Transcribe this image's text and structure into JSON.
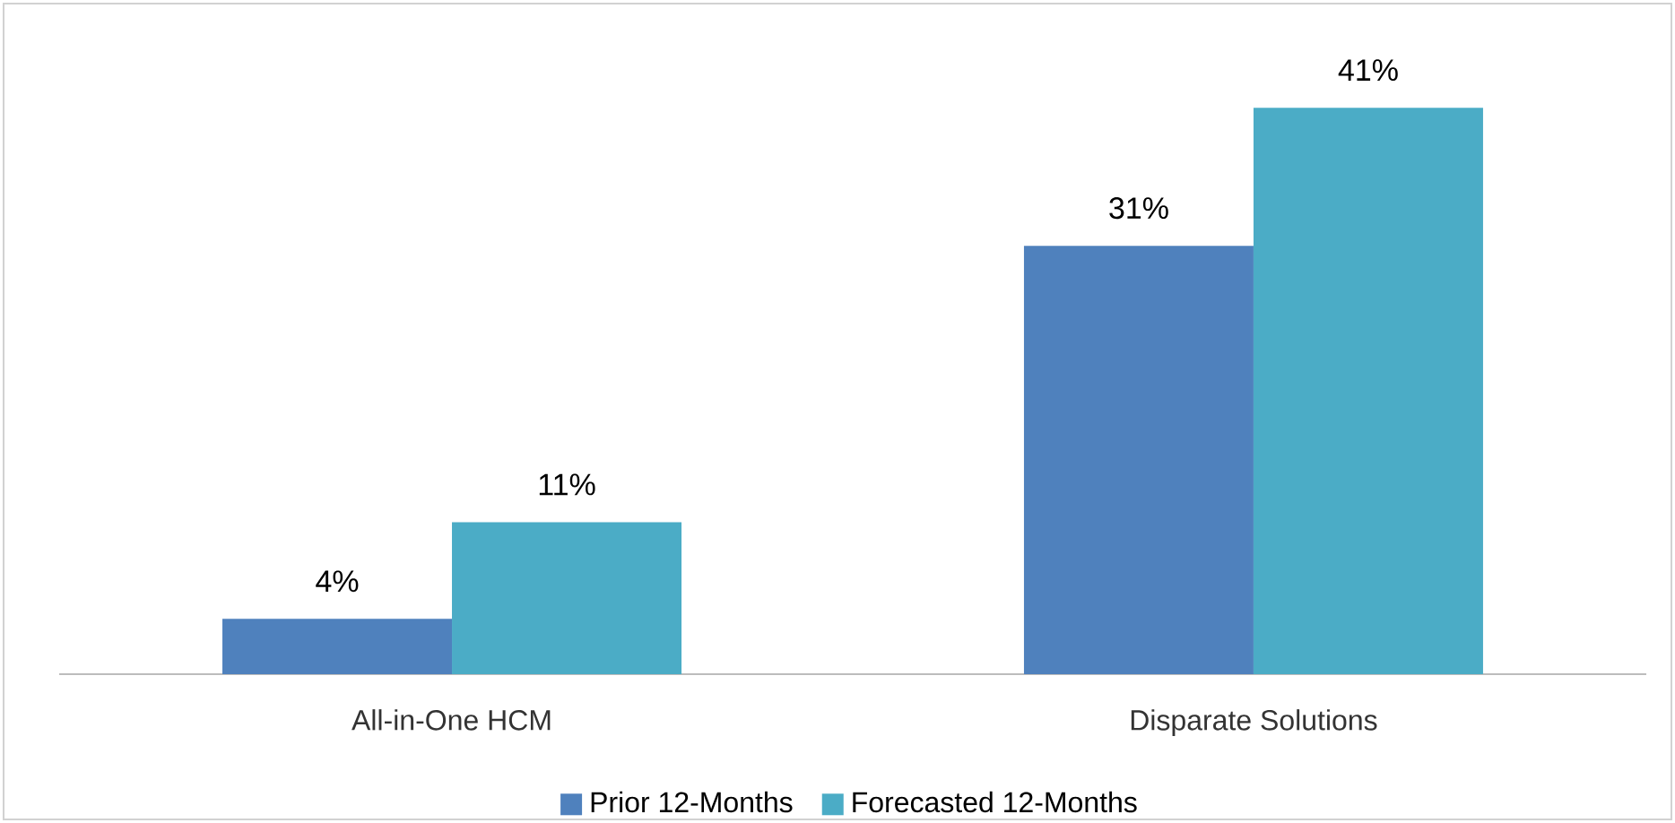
{
  "chart_data": {
    "type": "bar",
    "categories": [
      "All-in-One HCM",
      "Disparate Solutions"
    ],
    "series": [
      {
        "name": "Prior 12-Months",
        "color": "#4f81bd",
        "values": [
          4,
          31
        ],
        "value_labels": [
          "4%",
          "31%"
        ]
      },
      {
        "name": "Forecasted 12-Months",
        "color": "#4bacc6",
        "values": [
          11,
          41
        ],
        "value_labels": [
          "11%",
          "41%"
        ]
      }
    ],
    "legend": "bottom"
  }
}
